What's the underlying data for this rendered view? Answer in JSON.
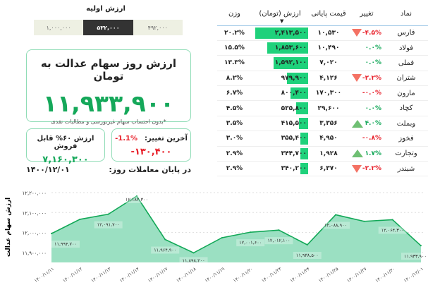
{
  "initial": {
    "title": "ارزش اولیه",
    "options": [
      "۱,۰۰۰,۰۰۰",
      "۵۳۲,۰۰۰",
      "۴۹۲,۰۰۰"
    ],
    "selected": 1
  },
  "main": {
    "title": "ارزش روز سهام عدالت به تومان",
    "value": "۱۱,۹۳۳,۹۰۰",
    "note": "*بدون احتساب سهام غیربورسی و مطالبات نقدی"
  },
  "sellable": {
    "label": "ارزش ۶۰% قابل فروش",
    "value": "۷,۱۶۰,۳۰۰"
  },
  "last_change": {
    "label": "آخرین تغییر:",
    "percent": "-1.1%",
    "value": "-۱۳۰,۴۰۰"
  },
  "end_of_day": {
    "label": "در پایان معاملات روز:",
    "date": "۱۴۰۰/۱۲/۰۱"
  },
  "table": {
    "headers": {
      "symbol": "نماد",
      "change": "تغییر",
      "price": "قیمت پایانی",
      "value": "ارزش (تومان)",
      "weight": "وزن"
    },
    "sort_column": "value",
    "sort_dir": "desc",
    "rows": [
      {
        "symbol": "فارس",
        "change": "-۴.۵%",
        "dir": "down",
        "price": "۱۰,۵۳۰",
        "value": "۲,۴۱۳,۵۰۰",
        "amount": 2413500,
        "weight": "۲۰.۲%"
      },
      {
        "symbol": "فولاد",
        "change": "۰.۰%",
        "dir": "flat-up",
        "price": "۱۰,۴۹۰",
        "value": "۱,۸۵۳,۶۰۰",
        "amount": 1853600,
        "weight": "۱۵.۵%"
      },
      {
        "symbol": "فملی",
        "change": "۰.۰%",
        "dir": "flat-up",
        "price": "۷,۰۲۰",
        "value": "۱,۵۹۲,۱۰۰",
        "amount": 1592100,
        "weight": "۱۳.۳%"
      },
      {
        "symbol": "شتران",
        "change": "-۲.۲%",
        "dir": "down",
        "price": "۴,۱۲۶",
        "value": "۹۷۹,۹۰۰",
        "amount": 979900,
        "weight": "۸.۲%"
      },
      {
        "symbol": "مارون",
        "change": "-۰.۰%",
        "dir": "flat-down",
        "price": "۱۷۰,۳۰۰",
        "value": "۸۰۰,۴۰۰",
        "amount": 800400,
        "weight": "۶.۷%"
      },
      {
        "symbol": "کچاد",
        "change": "۰.۰%",
        "dir": "flat-up",
        "price": "۲۹,۶۰۰",
        "value": "۵۳۵,۸۰۰",
        "amount": 535800,
        "weight": "۴.۵%"
      },
      {
        "symbol": "وبملت",
        "change": "۴.۰%",
        "dir": "up",
        "price": "۳,۳۵۶",
        "value": "۴۱۵,۵۰۰",
        "amount": 415500,
        "weight": "۳.۵%"
      },
      {
        "symbol": "فخوز",
        "change": "-۰.۸%",
        "dir": "flat-down",
        "price": "۴,۹۵۰",
        "value": "۳۵۵,۴۰۰",
        "amount": 355400,
        "weight": "۳.۰%"
      },
      {
        "symbol": "وتجارت",
        "change": "۱.۷%",
        "dir": "up",
        "price": "۱,۹۲۸",
        "value": "۳۴۴,۷۰۰",
        "amount": 344700,
        "weight": "۲.۹%"
      },
      {
        "symbol": "شبندر",
        "change": "-۲.۲%",
        "dir": "down",
        "price": "۶,۳۷۰",
        "value": "۳۴۰,۲۰۰",
        "amount": 340200,
        "weight": "۲.۹%"
      }
    ]
  },
  "colors": {
    "positive": "#15a85a",
    "negative": "#e8202a",
    "bar": "#1fd17b",
    "area": "#9be0c2",
    "line": "#12a857"
  },
  "chart_data": {
    "type": "area",
    "ylabel": "ارزش سهام عدالت",
    "ylim": [
      11850000,
      12200000
    ],
    "yticks": [
      11900000,
      12000000,
      12100000,
      12200000
    ],
    "ytick_labels": [
      "۱۱,۹۰۰,۰۰۰",
      "۱۲,۰۰۰,۰۰۰",
      "۱۲,۱۰۰,۰۰۰",
      "۱۲,۲۰۰,۰۰۰"
    ],
    "grid": true,
    "x": [
      "۱۴۰۰/۱۱/۱۱",
      "۱۴۰۰/۱۱/۱۲",
      "۱۴۰۰/۱۱/۱۳",
      "۱۴۰۰/۱۱/۱۴",
      "۱۴۰۰/۱۱/۱۷",
      "۱۴۰۰/۱۱/۱۸",
      "۱۴۰۰/۱۱/۱۹",
      "۱۴۰۰/۱۱/۲۰",
      "۱۴۰۰/۱۱/۲۳",
      "۱۴۰۰/۱۱/۲۴",
      "۱۴۰۰/۱۱/۲۵",
      "۱۴۰۰/۱۱/۲۷",
      "۱۴۰۰/۱۱/۳۰",
      "۱۴۰۰/۱۲/۰۱"
    ],
    "values": [
      11994700,
      12066000,
      12091700,
      12182300,
      11964900,
      11898200,
      11974000,
      12001600,
      12012100,
      11938500,
      12088900,
      12056000,
      12064300,
      11933900
    ],
    "labels": [
      "۱۱,۹۹۴,۷۰۰",
      "",
      "۱۲,۰۹۱,۷۰۰",
      "۱۲,۱۸۲,۳۰۰",
      "۱۱,۹۶۴,۹۰۰",
      "۱۱,۸۹۸,۲۰۰",
      "",
      "۱۲,۰۰۱,۶۰۰",
      "۱۲,۰۱۲,۱۰۰",
      "۱۱,۹۳۸,۵۰۰",
      "۱۲,۰۸۸,۹۰۰",
      "",
      "۱۲,۰۶۴,۳۰۰",
      "۱۱,۹۳۳,۹۰۰"
    ]
  }
}
